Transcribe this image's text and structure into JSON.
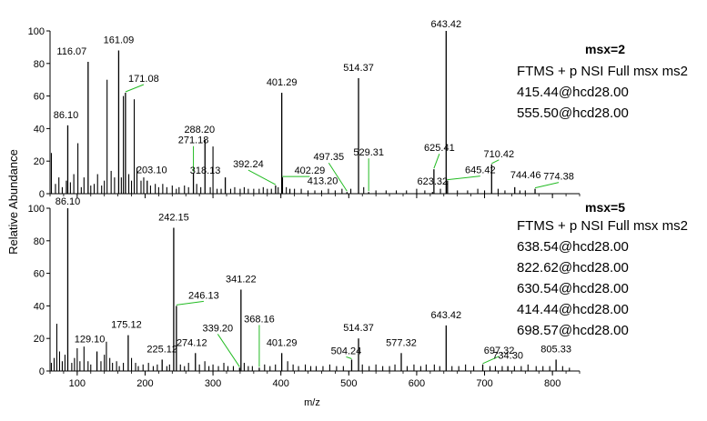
{
  "chart_data": [
    {
      "type": "spectrum",
      "title": "msx=2",
      "info": [
        "FTMS + p NSI Full msx ms2",
        "415.44@hcd28.00",
        "555.50@hcd28.00"
      ],
      "xlabel": "m/z",
      "ylabel": "Relative Abundance",
      "xlim": [
        60,
        840
      ],
      "ylim": [
        0,
        100
      ],
      "yticks": [
        0,
        20,
        40,
        60,
        80,
        100
      ],
      "labeled_peaks": [
        {
          "label": "86.10",
          "x": 86.1,
          "y": 42,
          "leader": false
        },
        {
          "label": "116.07",
          "x": 116.07,
          "y": 81,
          "leader": false
        },
        {
          "label": "161.09",
          "x": 161.09,
          "y": 88,
          "leader": false
        },
        {
          "label": "171.08",
          "x": 171.08,
          "y": 62,
          "leader": true
        },
        {
          "label": "203.10",
          "x": 203.1,
          "y": 8,
          "leader": false
        },
        {
          "label": "271.18",
          "x": 271.18,
          "y": 13,
          "leader": true
        },
        {
          "label": "288.20",
          "x": 288.2,
          "y": 33,
          "leader": false
        },
        {
          "label": "318.13",
          "x": 318.13,
          "y": 10,
          "leader": false
        },
        {
          "label": "392.24",
          "x": 392.24,
          "y": 5,
          "leader": true
        },
        {
          "label": "401.29",
          "x": 401.29,
          "y": 62,
          "leader": false
        },
        {
          "label": "402.29",
          "x": 402.29,
          "y": 10,
          "leader": true
        },
        {
          "label": "413.20",
          "x": 413.2,
          "y": 3,
          "leader": false
        },
        {
          "label": "497.35",
          "x": 497.35,
          "y": 1,
          "leader": true
        },
        {
          "label": "514.37",
          "x": 514.37,
          "y": 71,
          "leader": false
        },
        {
          "label": "529.31",
          "x": 529.31,
          "y": 1,
          "leader": true
        },
        {
          "label": "623.32",
          "x": 623.32,
          "y": 1,
          "leader": false
        },
        {
          "label": "625.41",
          "x": 625.41,
          "y": 15,
          "leader": true
        },
        {
          "label": "643.42",
          "x": 643.42,
          "y": 100,
          "leader": false
        },
        {
          "label": "645.42",
          "x": 645.42,
          "y": 8,
          "leader": true
        },
        {
          "label": "710.42",
          "x": 710.42,
          "y": 18,
          "leader": true
        },
        {
          "label": "744.46",
          "x": 744.46,
          "y": 4,
          "leader": false
        },
        {
          "label": "774.38",
          "x": 774.38,
          "y": 3,
          "leader": true
        }
      ],
      "minor_peaks": [
        [
          62,
          25
        ],
        [
          68,
          6
        ],
        [
          73,
          10
        ],
        [
          78,
          4
        ],
        [
          84,
          8
        ],
        [
          90,
          7
        ],
        [
          95,
          12
        ],
        [
          101,
          31
        ],
        [
          106,
          4
        ],
        [
          110,
          10
        ],
        [
          120,
          5
        ],
        [
          125,
          6
        ],
        [
          130,
          12
        ],
        [
          136,
          5
        ],
        [
          140,
          8
        ],
        [
          144,
          70
        ],
        [
          150,
          14
        ],
        [
          155,
          10
        ],
        [
          165,
          10
        ],
        [
          168,
          60
        ],
        [
          176,
          12
        ],
        [
          180,
          8
        ],
        [
          184,
          58
        ],
        [
          188,
          16
        ],
        [
          194,
          8
        ],
        [
          198,
          10
        ],
        [
          208,
          5
        ],
        [
          215,
          6
        ],
        [
          220,
          4
        ],
        [
          226,
          6
        ],
        [
          232,
          4
        ],
        [
          240,
          5
        ],
        [
          246,
          3
        ],
        [
          250,
          4
        ],
        [
          258,
          5
        ],
        [
          264,
          4
        ],
        [
          276,
          6
        ],
        [
          282,
          4
        ],
        [
          296,
          4
        ],
        [
          300,
          29
        ],
        [
          306,
          3
        ],
        [
          312,
          3
        ],
        [
          326,
          3
        ],
        [
          332,
          4
        ],
        [
          340,
          3
        ],
        [
          346,
          4
        ],
        [
          352,
          3
        ],
        [
          360,
          3
        ],
        [
          368,
          3
        ],
        [
          374,
          4
        ],
        [
          380,
          3
        ],
        [
          386,
          3
        ],
        [
          396,
          4
        ],
        [
          408,
          4
        ],
        [
          420,
          3
        ],
        [
          430,
          3
        ],
        [
          440,
          2
        ],
        [
          450,
          2
        ],
        [
          460,
          2
        ],
        [
          470,
          3
        ],
        [
          480,
          2
        ],
        [
          490,
          3
        ],
        [
          503,
          3
        ],
        [
          522,
          4
        ],
        [
          540,
          2
        ],
        [
          555,
          2
        ],
        [
          570,
          2
        ],
        [
          585,
          2
        ],
        [
          600,
          3
        ],
        [
          612,
          2
        ],
        [
          635,
          3
        ],
        [
          660,
          2
        ],
        [
          675,
          2
        ],
        [
          690,
          3
        ],
        [
          700,
          2
        ],
        [
          720,
          3
        ],
        [
          730,
          2
        ],
        [
          752,
          2
        ],
        [
          760,
          2
        ]
      ]
    },
    {
      "type": "spectrum",
      "title": "msx=5",
      "info": [
        "FTMS + p NSI Full msx ms2",
        "638.54@hcd28.00",
        "822.62@hcd28.00",
        "630.54@hcd28.00",
        "414.44@hcd28.00",
        "698.57@hcd28.00"
      ],
      "xlabel": "m/z",
      "ylabel": "Relative Abundance",
      "xlim": [
        60,
        840
      ],
      "ylim": [
        0,
        100
      ],
      "yticks": [
        0,
        20,
        40,
        60,
        80,
        100
      ],
      "xticks": [
        100,
        200,
        300,
        400,
        500,
        600,
        700,
        800
      ],
      "labeled_peaks": [
        {
          "label": "86.10",
          "x": 86.1,
          "y": 100,
          "leader": false
        },
        {
          "label": "129.10",
          "x": 129.1,
          "y": 12,
          "leader": false
        },
        {
          "label": "175.12",
          "x": 175.12,
          "y": 22,
          "leader": false
        },
        {
          "label": "225.12",
          "x": 225.12,
          "y": 7,
          "leader": false
        },
        {
          "label": "242.15",
          "x": 242.15,
          "y": 88,
          "leader": false
        },
        {
          "label": "246.13",
          "x": 246.13,
          "y": 40,
          "leader": true
        },
        {
          "label": "274.12",
          "x": 274.12,
          "y": 11,
          "leader": false
        },
        {
          "label": "339.20",
          "x": 339.2,
          "y": 2,
          "leader": true
        },
        {
          "label": "341.22",
          "x": 341.22,
          "y": 50,
          "leader": false
        },
        {
          "label": "368.16",
          "x": 368.16,
          "y": 2,
          "leader": true
        },
        {
          "label": "401.29",
          "x": 401.29,
          "y": 11,
          "leader": false
        },
        {
          "label": "504.24",
          "x": 504.24,
          "y": 7,
          "leader": true
        },
        {
          "label": "514.37",
          "x": 514.37,
          "y": 20,
          "leader": false
        },
        {
          "label": "577.32",
          "x": 577.32,
          "y": 11,
          "leader": false
        },
        {
          "label": "643.42",
          "x": 643.42,
          "y": 28,
          "leader": false
        },
        {
          "label": "697.32",
          "x": 697.32,
          "y": 4,
          "leader": true
        },
        {
          "label": "734.30",
          "x": 734.3,
          "y": 3,
          "leader": false
        },
        {
          "label": "805.33",
          "x": 805.33,
          "y": 7,
          "leader": false
        }
      ],
      "minor_peaks": [
        [
          62,
          5
        ],
        [
          66,
          8
        ],
        [
          70,
          29
        ],
        [
          74,
          12
        ],
        [
          78,
          6
        ],
        [
          82,
          10
        ],
        [
          92,
          5
        ],
        [
          96,
          8
        ],
        [
          100,
          14
        ],
        [
          104,
          6
        ],
        [
          110,
          15
        ],
        [
          116,
          6
        ],
        [
          120,
          4
        ],
        [
          135,
          6
        ],
        [
          140,
          10
        ],
        [
          143,
          18
        ],
        [
          148,
          8
        ],
        [
          152,
          5
        ],
        [
          158,
          6
        ],
        [
          162,
          3
        ],
        [
          168,
          5
        ],
        [
          180,
          8
        ],
        [
          186,
          5
        ],
        [
          190,
          3
        ],
        [
          197,
          4
        ],
        [
          205,
          5
        ],
        [
          212,
          3
        ],
        [
          218,
          4
        ],
        [
          232,
          3
        ],
        [
          236,
          4
        ],
        [
          252,
          4
        ],
        [
          258,
          3
        ],
        [
          264,
          5
        ],
        [
          280,
          4
        ],
        [
          288,
          6
        ],
        [
          294,
          3
        ],
        [
          300,
          4
        ],
        [
          308,
          3
        ],
        [
          316,
          5
        ],
        [
          322,
          3
        ],
        [
          330,
          3
        ],
        [
          346,
          5
        ],
        [
          352,
          3
        ],
        [
          358,
          3
        ],
        [
          376,
          4
        ],
        [
          384,
          3
        ],
        [
          392,
          4
        ],
        [
          410,
          6
        ],
        [
          418,
          4
        ],
        [
          426,
          3
        ],
        [
          436,
          4
        ],
        [
          444,
          3
        ],
        [
          452,
          3
        ],
        [
          462,
          3
        ],
        [
          472,
          4
        ],
        [
          482,
          3
        ],
        [
          492,
          3
        ],
        [
          520,
          4
        ],
        [
          530,
          3
        ],
        [
          540,
          4
        ],
        [
          550,
          3
        ],
        [
          560,
          3
        ],
        [
          568,
          4
        ],
        [
          586,
          3
        ],
        [
          596,
          4
        ],
        [
          606,
          3
        ],
        [
          614,
          4
        ],
        [
          626,
          4
        ],
        [
          634,
          3
        ],
        [
          652,
          3
        ],
        [
          662,
          3
        ],
        [
          672,
          4
        ],
        [
          684,
          3
        ],
        [
          708,
          3
        ],
        [
          716,
          3
        ],
        [
          726,
          3
        ],
        [
          744,
          3
        ],
        [
          754,
          3
        ],
        [
          764,
          4
        ],
        [
          776,
          3
        ],
        [
          786,
          3
        ],
        [
          796,
          3
        ],
        [
          815,
          3
        ],
        [
          825,
          2
        ]
      ]
    }
  ]
}
